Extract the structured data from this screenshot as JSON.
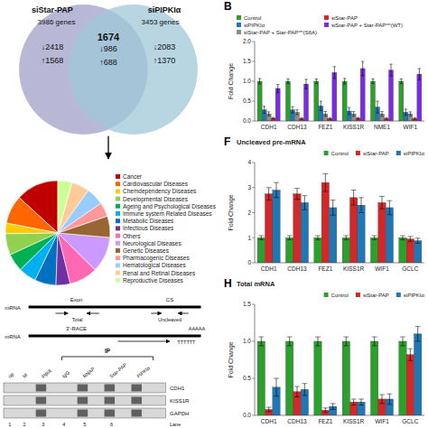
{
  "chart_data": [
    {
      "type": "bar",
      "title": "B",
      "y_label": "Fold Change",
      "categories": [
        "CDH1",
        "CDH13",
        "FEZ1",
        "KISS1R",
        "NME1",
        "WIF1"
      ],
      "series": [
        {
          "name": "Control",
          "color": "#2ca02c",
          "values": [
            1.0,
            1.0,
            1.0,
            1.0,
            1.0,
            1.0
          ],
          "errors": [
            0.07,
            0.06,
            0.06,
            0.07,
            0.06,
            0.06
          ]
        },
        {
          "name": "siPIPKIα",
          "color": "#1f77b4",
          "values": [
            0.28,
            0.28,
            0.38,
            0.25,
            0.35,
            0.22
          ],
          "errors": [
            0.09,
            0.08,
            0.12,
            0.09,
            0.15,
            0.08
          ]
        },
        {
          "name": "siStar-PAP + Star-PAPˢᵐ(S6A)",
          "color": "#8c8c8c",
          "values": [
            0.18,
            0.22,
            0.18,
            0.18,
            0.18,
            0.18
          ],
          "errors": [
            0.05,
            0.06,
            0.06,
            0.06,
            0.06,
            0.05
          ]
        },
        {
          "name": "siStar-PAP",
          "color": "#d62728",
          "values": [
            0.07,
            0.06,
            0.06,
            0.07,
            0.06,
            0.06
          ],
          "errors": [
            0.02,
            0.02,
            0.02,
            0.02,
            0.02,
            0.02
          ]
        },
        {
          "name": "siStar-PAP + Star-PAPˢᵐ(WT)",
          "color": "#7b2be2",
          "values": [
            0.82,
            0.93,
            1.22,
            1.32,
            1.28,
            1.18
          ],
          "errors": [
            0.1,
            0.12,
            0.15,
            0.18,
            0.15,
            0.14
          ]
        }
      ],
      "ylim": [
        0,
        2.0
      ],
      "yticks": [
        {
          "value": 0,
          "label": "0.0"
        },
        0.5,
        {
          "value": 1.0,
          "label": "1.0"
        },
        1.5,
        {
          "value": 2.0,
          "label": "2.0"
        }
      ],
      "grid": false,
      "legend": "upper left"
    },
    {
      "type": "bar",
      "title": "F",
      "subtitle": "Uncleaved pre-mRNA",
      "y_label": "Fold Change",
      "categories": [
        "CDH1",
        "CDH13",
        "FEZ1",
        "KISS1R",
        "WIF1",
        "GCLC"
      ],
      "series": [
        {
          "name": "Control",
          "color": "#2ca02c",
          "values": [
            1.0,
            1.0,
            1.0,
            1.0,
            1.0,
            1.0
          ],
          "errors": [
            0.08,
            0.08,
            0.08,
            0.08,
            0.08,
            0.08
          ]
        },
        {
          "name": "siStar-PAP",
          "color": "#d62728",
          "values": [
            2.75,
            2.75,
            3.2,
            2.6,
            2.4,
            0.95
          ],
          "errors": [
            0.25,
            0.22,
            0.35,
            0.3,
            0.25,
            0.1
          ]
        },
        {
          "name": "siPIPKIα",
          "color": "#1f77b4",
          "values": [
            2.9,
            2.4,
            2.2,
            2.3,
            2.2,
            0.88
          ],
          "errors": [
            0.3,
            0.28,
            0.3,
            0.3,
            0.28,
            0.1
          ]
        }
      ],
      "ylim": [
        0,
        4.0
      ],
      "yticks": [
        0,
        1,
        2,
        3,
        4
      ],
      "grid": false,
      "legend": "upper right"
    },
    {
      "type": "bar",
      "title": "H",
      "subtitle": "Total mRNA",
      "y_label": "Fold Change",
      "categories": [
        "CDH1",
        "CDH13",
        "FEZ1",
        "KISS1R",
        "WIF1",
        "GCLC"
      ],
      "series": [
        {
          "name": "Control",
          "color": "#2ca02c",
          "values": [
            1.0,
            1.0,
            1.0,
            1.0,
            1.0,
            1.0
          ],
          "errors": [
            0.06,
            0.06,
            0.06,
            0.06,
            0.06,
            0.06
          ]
        },
        {
          "name": "siStar-PAP",
          "color": "#d62728",
          "values": [
            0.08,
            0.32,
            0.07,
            0.18,
            0.22,
            0.82
          ],
          "errors": [
            0.03,
            0.07,
            0.03,
            0.04,
            0.06,
            0.08
          ]
        },
        {
          "name": "siPIPKIα",
          "color": "#1f77b4",
          "values": [
            0.38,
            0.35,
            0.12,
            0.18,
            0.22,
            1.1
          ],
          "errors": [
            0.12,
            0.08,
            0.04,
            0.04,
            0.07,
            0.1
          ]
        }
      ],
      "ylim": [
        0,
        1.5
      ],
      "yticks": [
        {
          "value": 0,
          "label": "0.0"
        },
        0.5,
        {
          "value": 1.0,
          "label": "1.0"
        },
        1.5
      ],
      "grid": false,
      "legend": "upper right"
    },
    {
      "type": "venn",
      "series": [
        {
          "name": "siStar-PAP",
          "color": "#a0a0c8"
        },
        {
          "name": "siPIPKIα",
          "color": "#a0c8d8"
        }
      ],
      "annotations": [
        "3986 genes",
        "3453 genes",
        "↓2418",
        "↑1568",
        "1674",
        "↓986",
        "↑688",
        "↓2083",
        "↑1370"
      ]
    },
    {
      "type": "pie",
      "categories": [
        "Cancer",
        "Cardiovascular Diseases",
        "Chemdependency Diseases",
        "Developmental Diseases",
        "Ageing and Psychological Diseases",
        "Immune system Related Diseases",
        "Metabolic Diseases",
        "Infectious Diseases",
        "Others",
        "Neurological Diseases",
        "Genetic Diseases",
        "Pharmacogenic Diseases",
        "Hematological Diseases",
        "Renal and Retinal Diseases",
        "Reproductive Diseases"
      ],
      "values": [
        12,
        8,
        3,
        6,
        5,
        5,
        6,
        4,
        8,
        10,
        6,
        4,
        5,
        5,
        4
      ],
      "colors": [
        "#c00000",
        "#ff6600",
        "#ffcc00",
        "#92d050",
        "#00b050",
        "#00b0f0",
        "#0070c0",
        "#7030a0",
        "#ff69b4",
        "#cc99ff",
        "#996633",
        "#ff9999",
        "#99ccff",
        "#ffcc99",
        "#ccff99"
      ],
      "legend": "right"
    },
    {
      "type": "diagram",
      "annotations": [
        "mRNA",
        "Exon",
        "CS",
        "Total",
        "Uncleaved",
        "mRNA",
        "3'-RACE",
        "AAAAA",
        "TTTTTT",
        "IP",
        "op",
        "M",
        "Input",
        "IgG",
        "RNAP",
        "Star-PAP",
        "PIPKlα",
        "CDH1",
        "KISS1R",
        "GAPDH",
        "Lane",
        "1",
        "2",
        "3",
        "4",
        "5",
        "6"
      ]
    }
  ]
}
